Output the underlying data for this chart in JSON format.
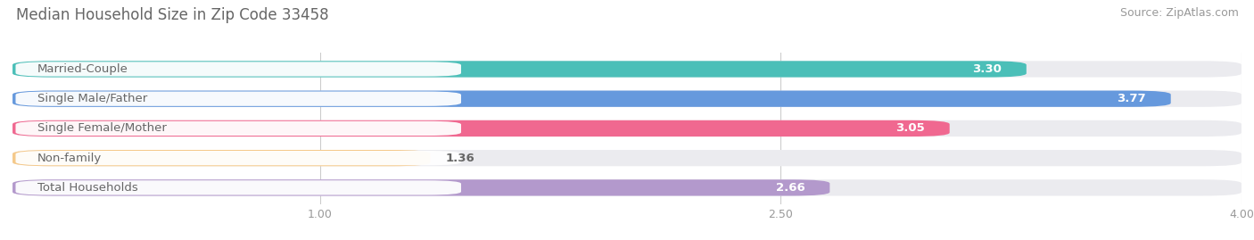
{
  "title": "Median Household Size in Zip Code 33458",
  "source": "Source: ZipAtlas.com",
  "categories": [
    "Married-Couple",
    "Single Male/Father",
    "Single Female/Mother",
    "Non-family",
    "Total Households"
  ],
  "values": [
    3.3,
    3.77,
    3.05,
    1.36,
    2.66
  ],
  "bar_colors": [
    "#4BBFB8",
    "#6699DD",
    "#F06890",
    "#F5C98A",
    "#B399CC"
  ],
  "label_colors": [
    "white",
    "white",
    "white",
    "#888888",
    "white"
  ],
  "xlim": [
    0,
    4.0
  ],
  "xticks": [
    1.0,
    2.5,
    4.0
  ],
  "background_color": "#ffffff",
  "bar_bg_color": "#ebebef",
  "title_fontsize": 12,
  "source_fontsize": 9,
  "label_fontsize": 9.5,
  "value_fontsize": 9.5,
  "bar_height": 0.55,
  "title_color": "#666666",
  "tick_color": "#999999",
  "grid_color": "#cccccc",
  "label_box_color": "#ffffff",
  "label_text_color": "#666666"
}
